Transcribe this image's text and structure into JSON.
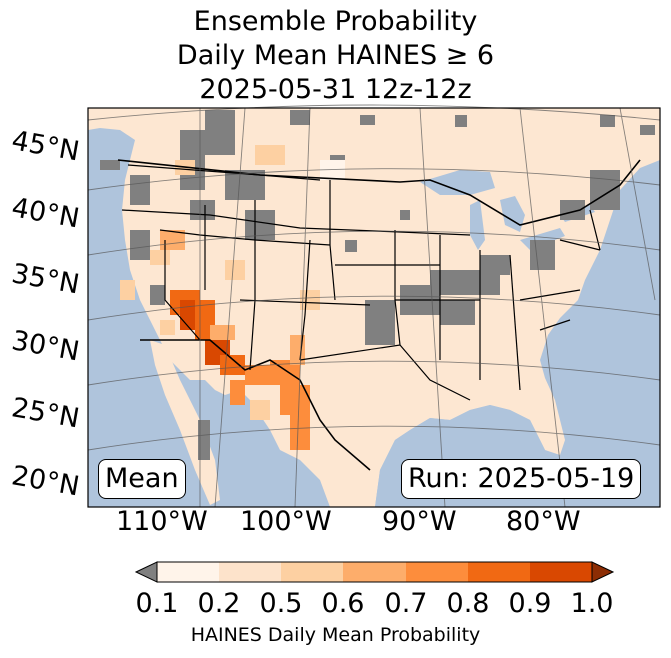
{
  "title": {
    "line1": "Ensemble Probability",
    "line2": "Daily Mean HAINES ≥ 6",
    "line3": "2025-05-31 12z-12z"
  },
  "map": {
    "lat_labels": [
      "45°N",
      "40°N",
      "35°N",
      "30°N",
      "25°N",
      "20°N"
    ],
    "lon_labels": [
      "110°W",
      "100°W",
      "90°W",
      "80°W"
    ],
    "stat_label": "Mean",
    "run_label": "Run: 2025-05-19",
    "ocean_color": "#afc4dc",
    "land_color": "#fde7d2",
    "missing_color": "#808080"
  },
  "colorbar": {
    "label": "HAINES Daily Mean Probability",
    "ticks": [
      "0.1",
      "0.2",
      "0.5",
      "0.6",
      "0.7",
      "0.8",
      "0.9",
      "1.0"
    ],
    "colors": [
      "#fff4ea",
      "#fde3cb",
      "#fdd0a2",
      "#fdad6b",
      "#fd8d3c",
      "#f16913",
      "#d94801"
    ],
    "under_color": "#808080",
    "over_color": "#8c2d04"
  }
}
